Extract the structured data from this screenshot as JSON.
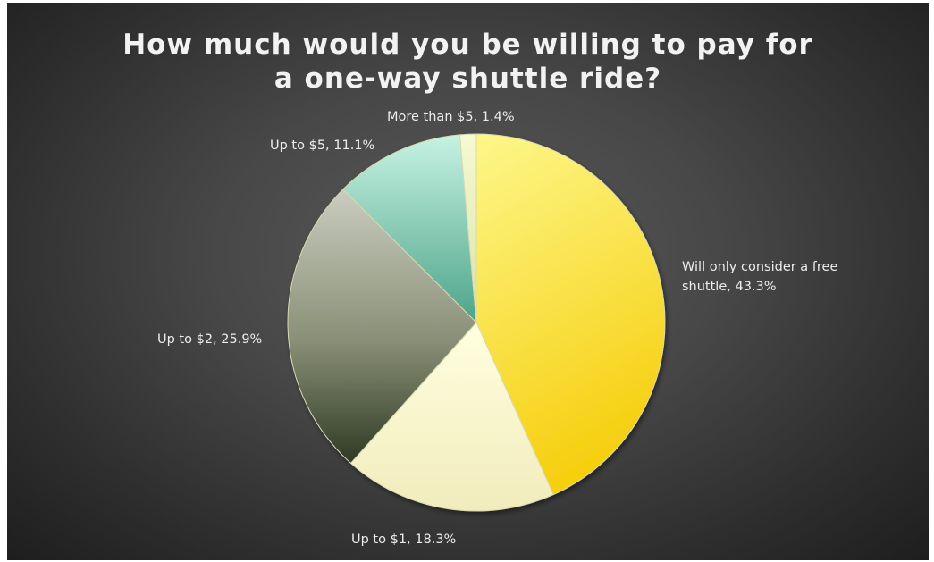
{
  "chart_data": {
    "type": "pie",
    "title": [
      "How much would you be willing to pay for",
      "a one-way shuttle ride?"
    ],
    "categories": [
      "Will only consider a free shuttle",
      "Up to $1",
      "Up to $2",
      "Up to $5",
      "More than $5"
    ],
    "values": [
      43.3,
      18.3,
      25.9,
      11.1,
      1.4
    ],
    "value_unit": "%",
    "labels": [
      [
        "Will only consider a free",
        "shuttle, 43.3%"
      ],
      [
        "Up to $1, 18.3%"
      ],
      [
        "Up to $2, 25.9%"
      ],
      [
        "Up to $5, 11.1%"
      ],
      [
        "More than $5, 1.4%"
      ]
    ],
    "colors": [
      "#f5dc3a",
      "#f8f5c8",
      "#8a9077",
      "#7ec9aa",
      "#eef2c2"
    ],
    "start_angle_deg": 0,
    "direction": "clockwise",
    "legend": "none"
  }
}
